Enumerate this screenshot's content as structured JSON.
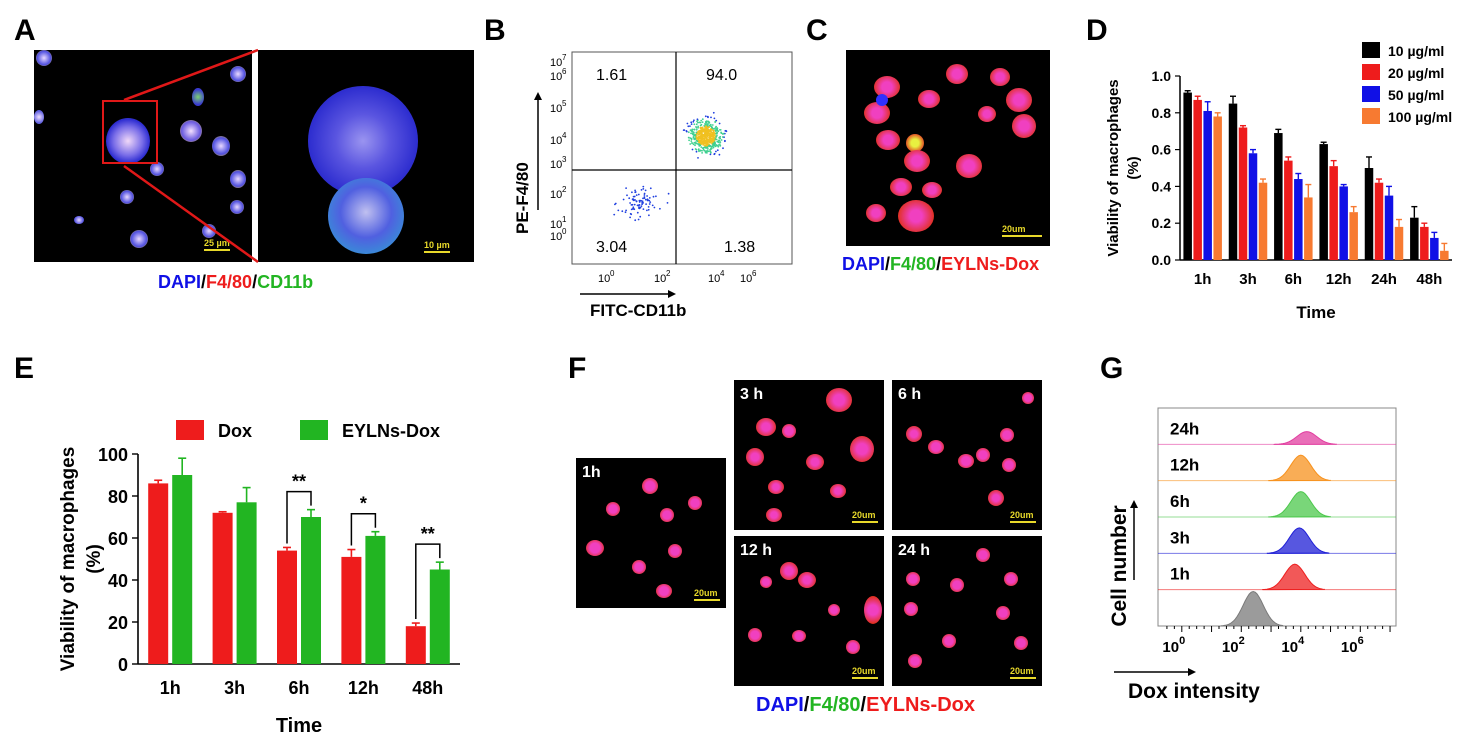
{
  "panels": {
    "a": "A",
    "b": "B",
    "c": "C",
    "d": "D",
    "e": "E",
    "f": "F",
    "g": "G"
  },
  "panel_a": {
    "scale_left": "25 µm",
    "scale_right": "10 µm",
    "caption": {
      "dapi": "DAPI",
      "sep": "/",
      "f480": "F4/80",
      "cd11b": "CD11b"
    }
  },
  "panel_b": {
    "ylabel": "PE-F4/80",
    "xlabel": "FITC-CD11b",
    "quadrants": {
      "ul": "1.61",
      "ur": "94.0",
      "ll": "3.04",
      "lr": "1.38"
    }
  },
  "panel_c": {
    "scale": "20um",
    "caption": {
      "dapi": "DAPI",
      "f480": "F4/80",
      "eyln": "EYLNs-Dox"
    }
  },
  "panel_f": {
    "tiles": [
      "1h",
      "3 h",
      "6 h",
      "12 h",
      "24 h"
    ],
    "scale": "20um",
    "caption": {
      "dapi": "DAPI",
      "f480": "F4/80",
      "eyln": "EYLNs-Dox"
    }
  },
  "colors": {
    "red": "#ee1c1c",
    "green": "#22b522",
    "blue": "#1010e6",
    "black": "#000000",
    "orange": "#f77a31",
    "pink": "#e13fa0"
  },
  "chart_data": [
    {
      "id": "D",
      "type": "bar",
      "categories": [
        "1h",
        "3h",
        "6h",
        "12h",
        "24h",
        "48h"
      ],
      "series": [
        {
          "name": "10 µg/ml",
          "color": "#000000",
          "values": [
            0.91,
            0.85,
            0.69,
            0.63,
            0.5,
            0.23
          ],
          "errors": [
            0.01,
            0.04,
            0.02,
            0.01,
            0.06,
            0.06
          ]
        },
        {
          "name": "20 µg/ml",
          "color": "#ee1c1c",
          "values": [
            0.87,
            0.72,
            0.54,
            0.51,
            0.42,
            0.18
          ],
          "errors": [
            0.02,
            0.01,
            0.02,
            0.03,
            0.02,
            0.02
          ]
        },
        {
          "name": "50 µg/ml",
          "color": "#1010e6",
          "values": [
            0.81,
            0.58,
            0.44,
            0.4,
            0.35,
            0.12
          ],
          "errors": [
            0.05,
            0.02,
            0.03,
            0.01,
            0.05,
            0.03
          ]
        },
        {
          "name": "100 µg/ml",
          "color": "#f77a31",
          "values": [
            0.78,
            0.42,
            0.34,
            0.26,
            0.18,
            0.05
          ],
          "errors": [
            0.02,
            0.02,
            0.07,
            0.03,
            0.04,
            0.04
          ]
        }
      ],
      "ylabel": "Viability of macrophages (%)",
      "xlabel": "Time",
      "yticks": [
        "0.0",
        "0.2",
        "0.4",
        "0.6",
        "0.8",
        "1.0"
      ],
      "ylim": [
        0,
        1.0
      ],
      "legend": "top-right"
    },
    {
      "id": "E",
      "type": "bar",
      "categories": [
        "1h",
        "3h",
        "6h",
        "12h",
        "48h"
      ],
      "series": [
        {
          "name": "Dox",
          "color": "#ee1c1c",
          "values": [
            86,
            72,
            54,
            51,
            18
          ],
          "errors": [
            1.5,
            0.5,
            1.5,
            3.5,
            1.5
          ]
        },
        {
          "name": "EYLNs-Dox",
          "color": "#22b522",
          "values": [
            90,
            77,
            70,
            61,
            45
          ],
          "errors": [
            8,
            7,
            3.5,
            2,
            3.5
          ]
        }
      ],
      "significance": [
        {
          "category": "6h",
          "label": "**"
        },
        {
          "category": "12h",
          "label": "*"
        },
        {
          "category": "48h",
          "label": "**"
        }
      ],
      "ylabel": "Viability of macrophages (%)",
      "xlabel": "Time",
      "yticks": [
        "0",
        "20",
        "40",
        "60",
        "80",
        "100"
      ],
      "ylim": [
        0,
        100
      ],
      "legend": "top"
    },
    {
      "id": "G",
      "type": "histogram",
      "tracks": [
        {
          "label": "24h",
          "color": "#e13fa0",
          "peak_log": 4.2
        },
        {
          "label": "12h",
          "color": "#f7921e",
          "peak_log": 4.0
        },
        {
          "label": "6h",
          "color": "#4cc84c",
          "peak_log": 4.0
        },
        {
          "label": "3h",
          "color": "#1f1fd6",
          "peak_log": 3.95
        },
        {
          "label": "1h",
          "color": "#ee2020",
          "peak_log": 3.8
        },
        {
          "label": "",
          "color": "#7a7a7a",
          "peak_log": 2.4
        }
      ],
      "ylabel": "Cell number",
      "xlabel": "Dox intensity",
      "xticks": [
        "10^0",
        "10^2",
        "10^4",
        "10^6"
      ],
      "xlim_log": [
        -0.8,
        7.2
      ]
    }
  ]
}
